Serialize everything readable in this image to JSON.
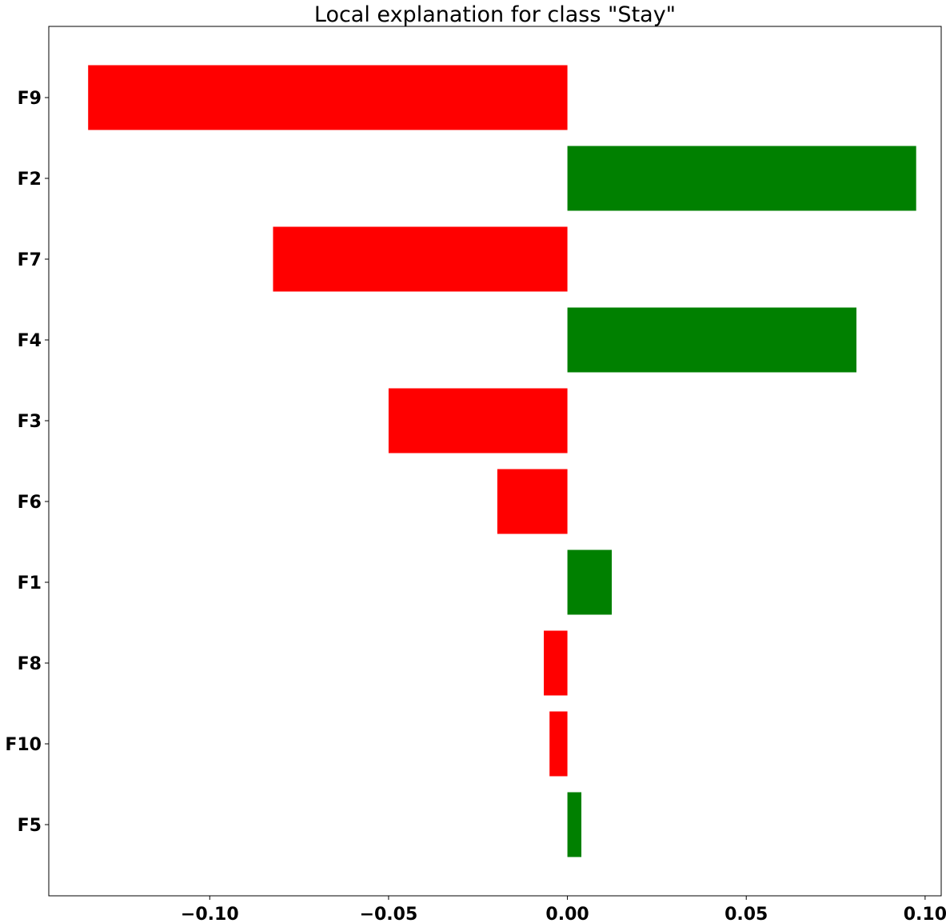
{
  "chart_data": {
    "type": "bar",
    "orientation": "horizontal",
    "title": "Local explanation for class \"Stay\"",
    "xlabel": "",
    "ylabel": "",
    "categories": [
      "F9",
      "F2",
      "F7",
      "F4",
      "F3",
      "F6",
      "F1",
      "F8",
      "F10",
      "F5"
    ],
    "values": [
      -0.134,
      0.0975,
      -0.0823,
      0.0808,
      -0.05,
      -0.0196,
      0.0124,
      -0.0066,
      -0.005,
      0.0039
    ],
    "xlim": [
      -0.145,
      0.1045
    ],
    "xticks": [
      -0.1,
      -0.05,
      0.0,
      0.05,
      0.1
    ],
    "xtick_labels": [
      "−0.10",
      "−0.05",
      "0.00",
      "0.05",
      "0.10"
    ],
    "grid": false,
    "legend": "none",
    "colors": {
      "positive": "#008000",
      "negative": "#ff0000"
    }
  }
}
